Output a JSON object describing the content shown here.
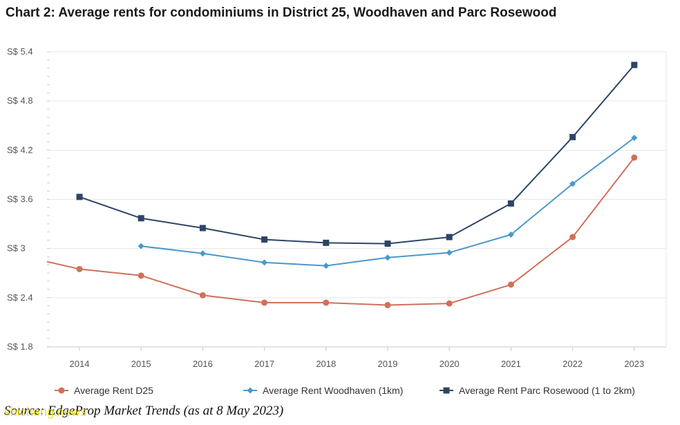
{
  "title": "Chart 2: Average rents for condominiums in District 25, Woodhaven and Parc Rosewood",
  "source": "Source: EdgeProp Market Trends (as at 8 May 2023)",
  "watermark": "shicheng.news",
  "chart_data": {
    "type": "line",
    "title": "Chart 2: Average rents for condominiums in District 25, Woodhaven and Parc Rosewood",
    "xlabel": "",
    "ylabel": "",
    "categories": [
      "2014",
      "2015",
      "2016",
      "2017",
      "2018",
      "2019",
      "2020",
      "2021",
      "2022",
      "2023"
    ],
    "y_ticks": [
      "S$ 1.8",
      "S$ 2.4",
      "S$ 3",
      "S$ 3.6",
      "S$ 4.2",
      "S$ 4.8",
      "S$ 5.4"
    ],
    "ylim": [
      1.8,
      5.4
    ],
    "grid": true,
    "legend_position": "bottom",
    "series": [
      {
        "name": "Average Rent D25",
        "color": "#d0705a",
        "marker": "circle",
        "left_extension_value": 2.84,
        "values": [
          2.75,
          2.67,
          2.43,
          2.34,
          2.34,
          2.31,
          2.33,
          2.56,
          3.14,
          4.11
        ]
      },
      {
        "name": "Average Rent Woodhaven (1km)",
        "color": "#4a98c9",
        "marker": "diamond",
        "values": [
          null,
          3.03,
          2.94,
          2.83,
          2.79,
          2.89,
          2.95,
          3.17,
          3.79,
          4.35
        ]
      },
      {
        "name": "Average Rent Parc Rosewood (1 to 2km)",
        "color": "#2c4566",
        "marker": "square",
        "values": [
          3.63,
          3.37,
          3.25,
          3.11,
          3.07,
          3.06,
          3.14,
          3.55,
          4.36,
          5.24
        ]
      }
    ]
  }
}
